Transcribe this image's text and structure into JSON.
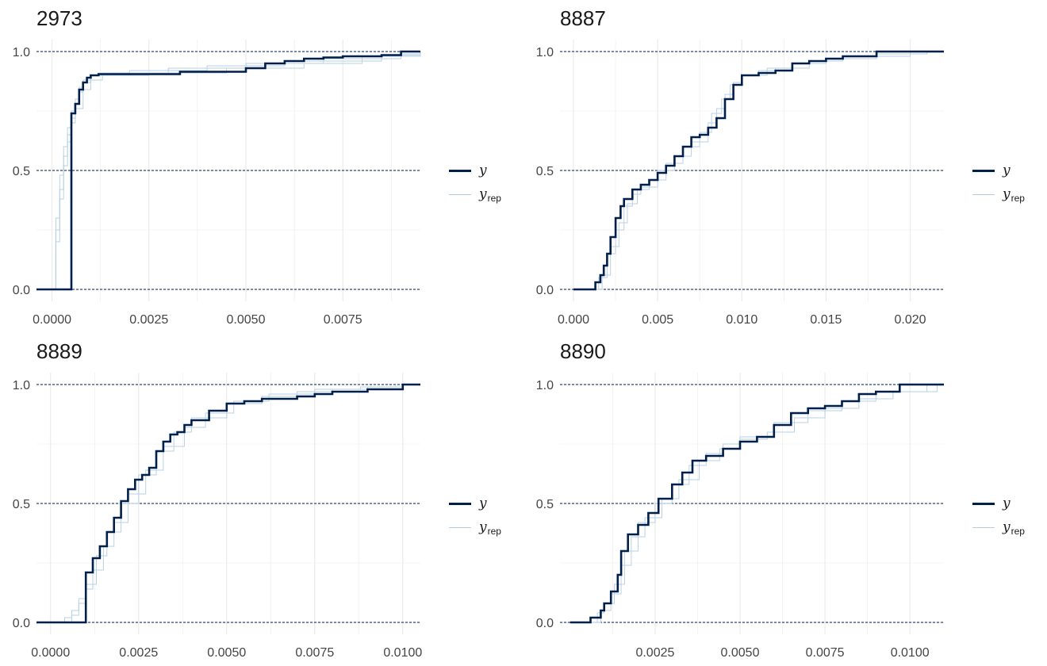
{
  "legend": {
    "y_label": "y",
    "yrep_label": "y",
    "yrep_sub": "rep"
  },
  "colors": {
    "y": "#011f4b",
    "yrep": "#b3cde0",
    "grid": "#ebebeb",
    "hline": "#011f4b"
  },
  "chart_data": [
    {
      "type": "line",
      "title": "2973",
      "xlim": [
        -0.0004,
        0.0095
      ],
      "ylim": [
        -0.05,
        1.05
      ],
      "xticks": [
        0.0,
        0.0025,
        0.005,
        0.0075
      ],
      "xtick_labels": [
        "0.0000",
        "0.0025",
        "0.0050",
        "0.0075"
      ],
      "yticks": [
        0.0,
        0.5,
        1.0
      ],
      "ytick_labels": [
        "0.0",
        "0.5",
        "1.0"
      ],
      "hlines": [
        0.0,
        0.5,
        1.0
      ],
      "series": [
        {
          "name": "y",
          "x": [
            -0.0004,
            0.0005,
            0.0005,
            0.0006,
            0.0007,
            0.0008,
            0.0009,
            0.001,
            0.0012,
            0.0015,
            0.002,
            0.0033,
            0.005,
            0.0055,
            0.006,
            0.0065,
            0.007,
            0.0075,
            0.0085,
            0.009,
            0.0095
          ],
          "y": [
            0.0,
            0.0,
            0.74,
            0.78,
            0.84,
            0.87,
            0.89,
            0.9,
            0.905,
            0.905,
            0.905,
            0.915,
            0.93,
            0.95,
            0.96,
            0.97,
            0.975,
            0.98,
            0.985,
            1.0,
            1.0
          ]
        },
        {
          "name": "y_rep",
          "x": [
            -0.0001,
            0.0,
            0.0001,
            0.0002,
            0.0003,
            0.0004,
            0.0005,
            0.0006,
            0.0007,
            0.0008,
            0.001,
            0.0015,
            0.003,
            0.005,
            0.007,
            0.009,
            0.0095
          ],
          "y": [
            0.0,
            0.0,
            0.25,
            0.42,
            0.56,
            0.65,
            0.72,
            0.78,
            0.83,
            0.87,
            0.9,
            0.91,
            0.93,
            0.95,
            0.97,
            0.99,
            1.0
          ]
        },
        {
          "name": "y_rep",
          "x": [
            0.0,
            0.0001,
            0.0002,
            0.0003,
            0.0004,
            0.0005,
            0.0006,
            0.0007,
            0.0008,
            0.001,
            0.0012,
            0.002,
            0.004,
            0.006,
            0.0085,
            0.0095
          ],
          "y": [
            0.0,
            0.3,
            0.48,
            0.6,
            0.68,
            0.75,
            0.8,
            0.85,
            0.88,
            0.9,
            0.91,
            0.92,
            0.94,
            0.96,
            0.985,
            1.0
          ]
        },
        {
          "name": "y_rep",
          "x": [
            0.0,
            0.0001,
            0.0002,
            0.0003,
            0.0004,
            0.0005,
            0.0006,
            0.0008,
            0.001,
            0.0013,
            0.0025,
            0.0045,
            0.0065,
            0.008,
            0.0095
          ],
          "y": [
            0.0,
            0.2,
            0.38,
            0.52,
            0.62,
            0.7,
            0.76,
            0.84,
            0.88,
            0.9,
            0.91,
            0.93,
            0.95,
            0.98,
            1.0
          ]
        }
      ]
    },
    {
      "type": "line",
      "title": "8887",
      "xlim": [
        -0.0008,
        0.022
      ],
      "ylim": [
        -0.05,
        1.05
      ],
      "xticks": [
        0.0,
        0.005,
        0.01,
        0.015,
        0.02
      ],
      "xtick_labels": [
        "0.000",
        "0.005",
        "0.010",
        "0.015",
        "0.020"
      ],
      "yticks": [
        0.0,
        0.5,
        1.0
      ],
      "ytick_labels": [
        "0.0",
        "0.5",
        "1.0"
      ],
      "hlines": [
        0.0,
        0.5,
        1.0
      ],
      "series": [
        {
          "name": "y",
          "x": [
            0.0,
            0.0012,
            0.0013,
            0.0016,
            0.0018,
            0.002,
            0.0022,
            0.0025,
            0.0028,
            0.003,
            0.0035,
            0.004,
            0.0045,
            0.005,
            0.0055,
            0.006,
            0.0065,
            0.007,
            0.0075,
            0.008,
            0.0085,
            0.009,
            0.0095,
            0.01,
            0.011,
            0.012,
            0.013,
            0.014,
            0.015,
            0.016,
            0.018,
            0.022
          ],
          "y": [
            0.0,
            0.0,
            0.03,
            0.06,
            0.1,
            0.15,
            0.22,
            0.3,
            0.35,
            0.38,
            0.42,
            0.44,
            0.46,
            0.49,
            0.52,
            0.56,
            0.6,
            0.64,
            0.65,
            0.68,
            0.72,
            0.8,
            0.86,
            0.9,
            0.91,
            0.92,
            0.95,
            0.96,
            0.97,
            0.98,
            1.0,
            1.0
          ]
        },
        {
          "name": "y_rep",
          "x": [
            0.0,
            0.0012,
            0.0015,
            0.002,
            0.0025,
            0.003,
            0.0035,
            0.004,
            0.005,
            0.006,
            0.007,
            0.008,
            0.0085,
            0.009,
            0.0095,
            0.01,
            0.011,
            0.012,
            0.014,
            0.016,
            0.02
          ],
          "y": [
            0.0,
            0.0,
            0.05,
            0.15,
            0.25,
            0.35,
            0.4,
            0.43,
            0.5,
            0.56,
            0.62,
            0.7,
            0.76,
            0.82,
            0.87,
            0.9,
            0.92,
            0.93,
            0.96,
            0.98,
            1.0
          ]
        },
        {
          "name": "y_rep",
          "x": [
            0.0,
            0.0013,
            0.0017,
            0.0022,
            0.0027,
            0.0032,
            0.0038,
            0.0045,
            0.0055,
            0.0065,
            0.0075,
            0.0082,
            0.0088,
            0.0093,
            0.01,
            0.0115,
            0.013,
            0.015,
            0.018,
            0.021
          ],
          "y": [
            0.0,
            0.0,
            0.06,
            0.18,
            0.28,
            0.36,
            0.42,
            0.46,
            0.53,
            0.6,
            0.66,
            0.74,
            0.8,
            0.86,
            0.9,
            0.93,
            0.95,
            0.97,
            0.99,
            1.0
          ]
        }
      ]
    },
    {
      "type": "line",
      "title": "8889",
      "xlim": [
        -0.0004,
        0.0105
      ],
      "ylim": [
        -0.05,
        1.05
      ],
      "xticks": [
        0.0,
        0.0025,
        0.005,
        0.0075,
        0.01
      ],
      "xtick_labels": [
        "0.0000",
        "0.0025",
        "0.0050",
        "0.0075",
        "0.0100"
      ],
      "yticks": [
        0.0,
        0.5,
        1.0
      ],
      "ytick_labels": [
        "0.0",
        "0.5",
        "1.0"
      ],
      "hlines": [
        0.0,
        0.5,
        1.0
      ],
      "series": [
        {
          "name": "y",
          "x": [
            -0.0004,
            0.001,
            0.001,
            0.0012,
            0.0014,
            0.0016,
            0.0018,
            0.002,
            0.0022,
            0.0024,
            0.0026,
            0.0028,
            0.003,
            0.0032,
            0.0034,
            0.0036,
            0.0038,
            0.004,
            0.0045,
            0.005,
            0.0055,
            0.006,
            0.007,
            0.0075,
            0.008,
            0.009,
            0.01,
            0.0105
          ],
          "y": [
            0.0,
            0.0,
            0.21,
            0.27,
            0.32,
            0.38,
            0.44,
            0.51,
            0.56,
            0.6,
            0.62,
            0.65,
            0.72,
            0.76,
            0.79,
            0.8,
            0.83,
            0.85,
            0.89,
            0.92,
            0.93,
            0.94,
            0.95,
            0.96,
            0.97,
            0.98,
            1.0,
            1.0
          ]
        },
        {
          "name": "y_rep",
          "x": [
            0.0002,
            0.0004,
            0.0006,
            0.0008,
            0.001,
            0.0013,
            0.0016,
            0.002,
            0.0025,
            0.003,
            0.0035,
            0.004,
            0.005,
            0.006,
            0.007,
            0.008,
            0.009,
            0.01
          ],
          "y": [
            0.0,
            0.02,
            0.05,
            0.1,
            0.16,
            0.28,
            0.38,
            0.5,
            0.62,
            0.72,
            0.8,
            0.86,
            0.92,
            0.95,
            0.97,
            0.98,
            0.99,
            1.0
          ]
        },
        {
          "name": "y_rep",
          "x": [
            0.0004,
            0.0006,
            0.0008,
            0.001,
            0.0012,
            0.0015,
            0.0018,
            0.0022,
            0.0027,
            0.0032,
            0.0038,
            0.0044,
            0.0052,
            0.0062,
            0.0075,
            0.0088,
            0.0098
          ],
          "y": [
            0.0,
            0.03,
            0.08,
            0.14,
            0.22,
            0.32,
            0.42,
            0.54,
            0.64,
            0.74,
            0.82,
            0.88,
            0.93,
            0.96,
            0.98,
            0.99,
            1.0
          ]
        }
      ]
    },
    {
      "type": "line",
      "title": "8890",
      "xlim": [
        -0.0003,
        0.011
      ],
      "ylim": [
        -0.05,
        1.05
      ],
      "xticks": [
        0.0025,
        0.005,
        0.0075,
        0.01
      ],
      "xtick_labels": [
        "0.0025",
        "0.0050",
        "0.0075",
        "0.0100"
      ],
      "yticks": [
        0.0,
        0.5,
        1.0
      ],
      "ytick_labels": [
        "0.0",
        "0.5",
        "1.0"
      ],
      "hlines": [
        0.0,
        0.5,
        1.0
      ],
      "series": [
        {
          "name": "y",
          "x": [
            0.0,
            0.0006,
            0.0006,
            0.0009,
            0.001,
            0.0012,
            0.0014,
            0.0015,
            0.0017,
            0.002,
            0.0023,
            0.0026,
            0.003,
            0.0033,
            0.0036,
            0.004,
            0.0045,
            0.005,
            0.0055,
            0.006,
            0.0065,
            0.007,
            0.0075,
            0.008,
            0.0085,
            0.009,
            0.0097,
            0.011
          ],
          "y": [
            0.0,
            0.0,
            0.02,
            0.05,
            0.08,
            0.13,
            0.2,
            0.3,
            0.37,
            0.41,
            0.46,
            0.52,
            0.58,
            0.63,
            0.68,
            0.7,
            0.73,
            0.76,
            0.78,
            0.83,
            0.88,
            0.9,
            0.91,
            0.93,
            0.96,
            0.97,
            1.0,
            1.0
          ]
        },
        {
          "name": "y_rep",
          "x": [
            0.0005,
            0.0008,
            0.001,
            0.0013,
            0.0016,
            0.002,
            0.0025,
            0.003,
            0.0035,
            0.004,
            0.0045,
            0.005,
            0.006,
            0.007,
            0.008,
            0.009,
            0.0105
          ],
          "y": [
            0.0,
            0.04,
            0.08,
            0.16,
            0.3,
            0.42,
            0.5,
            0.58,
            0.66,
            0.71,
            0.75,
            0.78,
            0.84,
            0.89,
            0.93,
            0.97,
            1.0
          ]
        },
        {
          "name": "y_rep",
          "x": [
            0.0006,
            0.0009,
            0.0012,
            0.0015,
            0.0018,
            0.0022,
            0.0027,
            0.0032,
            0.0038,
            0.0044,
            0.005,
            0.0058,
            0.0066,
            0.0075,
            0.0085,
            0.0095,
            0.0108
          ],
          "y": [
            0.0,
            0.05,
            0.12,
            0.24,
            0.36,
            0.44,
            0.52,
            0.6,
            0.68,
            0.73,
            0.77,
            0.8,
            0.86,
            0.9,
            0.94,
            0.97,
            1.0
          ]
        }
      ]
    }
  ]
}
